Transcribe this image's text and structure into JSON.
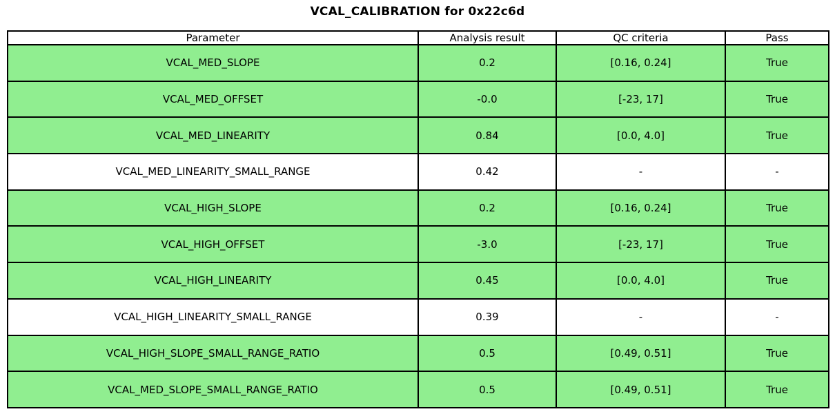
{
  "title": "VCAL_CALIBRATION for 0x22c6d",
  "colors": {
    "pass_row_bg": "#90EE90",
    "default_row_bg": "#FFFFFF",
    "border": "#000000",
    "text": "#000000"
  },
  "chart_data": {
    "type": "table",
    "title": "VCAL_CALIBRATION for 0x22c6d",
    "columns": [
      "Parameter",
      "Analysis result",
      "QC criteria",
      "Pass"
    ],
    "rows": [
      {
        "parameter": "VCAL_MED_SLOPE",
        "result": "0.2",
        "criteria": "[0.16, 0.24]",
        "pass": "True",
        "highlight": true
      },
      {
        "parameter": "VCAL_MED_OFFSET",
        "result": "-0.0",
        "criteria": "[-23, 17]",
        "pass": "True",
        "highlight": true
      },
      {
        "parameter": "VCAL_MED_LINEARITY",
        "result": "0.84",
        "criteria": "[0.0, 4.0]",
        "pass": "True",
        "highlight": true
      },
      {
        "parameter": "VCAL_MED_LINEARITY_SMALL_RANGE",
        "result": "0.42",
        "criteria": "-",
        "pass": "-",
        "highlight": false
      },
      {
        "parameter": "VCAL_HIGH_SLOPE",
        "result": "0.2",
        "criteria": "[0.16, 0.24]",
        "pass": "True",
        "highlight": true
      },
      {
        "parameter": "VCAL_HIGH_OFFSET",
        "result": "-3.0",
        "criteria": "[-23, 17]",
        "pass": "True",
        "highlight": true
      },
      {
        "parameter": "VCAL_HIGH_LINEARITY",
        "result": "0.45",
        "criteria": "[0.0, 4.0]",
        "pass": "True",
        "highlight": true
      },
      {
        "parameter": "VCAL_HIGH_LINEARITY_SMALL_RANGE",
        "result": "0.39",
        "criteria": "-",
        "pass": "-",
        "highlight": false
      },
      {
        "parameter": "VCAL_HIGH_SLOPE_SMALL_RANGE_RATIO",
        "result": "0.5",
        "criteria": "[0.49, 0.51]",
        "pass": "True",
        "highlight": true
      },
      {
        "parameter": "VCAL_MED_SLOPE_SMALL_RANGE_RATIO",
        "result": "0.5",
        "criteria": "[0.49, 0.51]",
        "pass": "True",
        "highlight": true
      }
    ]
  }
}
